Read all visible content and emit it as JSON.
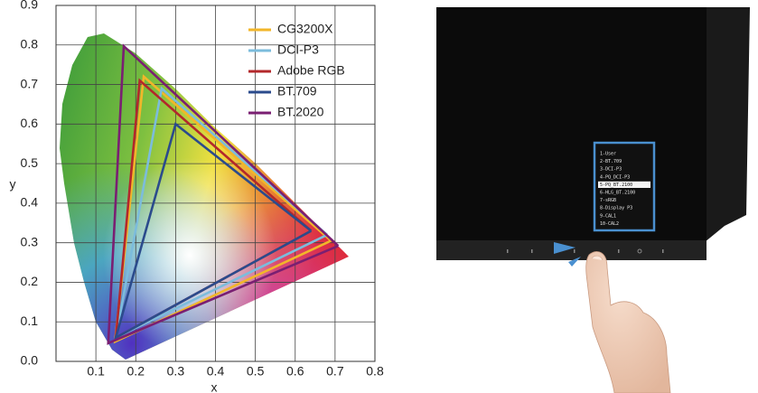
{
  "chart_data": {
    "type": "line",
    "xlabel": "x",
    "ylabel": "y",
    "xlim": [
      0,
      0.8
    ],
    "ylim": [
      0,
      0.9
    ],
    "xticks": [
      0.1,
      0.2,
      0.3,
      0.4,
      0.5,
      0.6,
      0.7,
      0.8
    ],
    "yticks": [
      {
        "value": 0,
        "label": "0.0"
      },
      0.1,
      0.2,
      0.3,
      0.4,
      0.5,
      0.6,
      0.7,
      0.8,
      0.9
    ],
    "grid": true,
    "legend": "upper right",
    "series": [
      {
        "name": "CG3200X",
        "color": "#f2b62a",
        "x": [
          0.69,
          0.22,
          0.148,
          0.69
        ],
        "values": [
          0.305,
          0.72,
          0.05,
          0.305
        ]
      },
      {
        "name": "DCI-P3",
        "color": "#7cbcdc",
        "x": [
          0.68,
          0.265,
          0.15,
          0.68
        ],
        "values": [
          0.32,
          0.69,
          0.06,
          0.32
        ]
      },
      {
        "name": "Adobe RGB",
        "color": "#b3282b",
        "x": [
          0.64,
          0.21,
          0.15,
          0.64
        ],
        "values": [
          0.33,
          0.71,
          0.06,
          0.33
        ]
      },
      {
        "name": "BT.709",
        "color": "#2b4b8c",
        "x": [
          0.64,
          0.3,
          0.15,
          0.64
        ],
        "values": [
          0.33,
          0.6,
          0.06,
          0.33
        ]
      },
      {
        "name": "BT.2020",
        "color": "#7a1f72",
        "x": [
          0.708,
          0.17,
          0.131,
          0.708
        ],
        "values": [
          0.292,
          0.797,
          0.046,
          0.292
        ]
      }
    ]
  },
  "monitor_menu": {
    "items": [
      "1-User",
      "2-BT.709",
      "3-DCI-P3",
      "4-PQ_DCI-P3",
      "5-PQ_BT.2100",
      "6-HLG_BT.2100",
      "7-sRGB",
      "8-Display P3",
      "9-CAL1",
      "10-CAL2"
    ],
    "selected": 4
  }
}
